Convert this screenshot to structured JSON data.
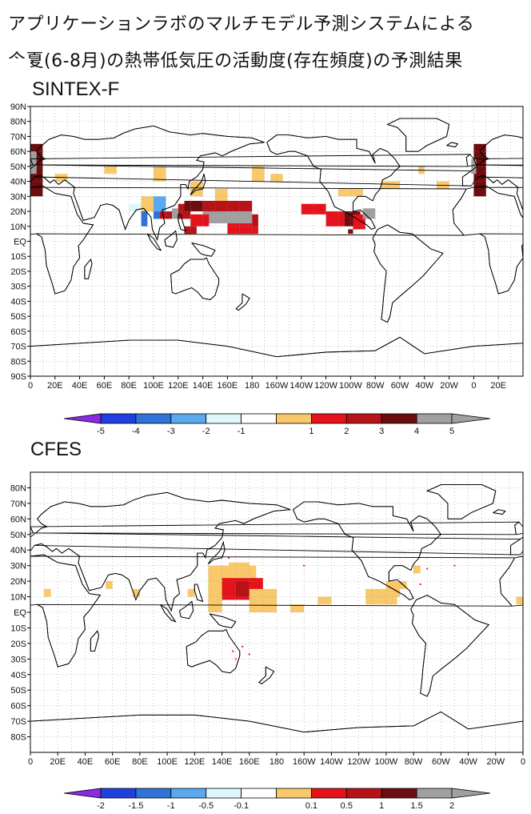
{
  "title": {
    "line1": "アプリケーションラボのマルチモデル予測システムによる",
    "line2": "今夏(6-8月)の熱帯低気圧の活動度(存在頻度)の予測結果"
  },
  "panels": [
    {
      "name": "SINTEX-F",
      "lat_labels": [
        "90N",
        "80N",
        "70N",
        "60N",
        "50N",
        "40N",
        "30N",
        "20N",
        "10N",
        "EQ",
        "10S",
        "20S",
        "30S",
        "40S",
        "50S",
        "60S",
        "70S",
        "80S",
        "90S"
      ],
      "lon_labels": [
        "0",
        "20E",
        "40E",
        "60E",
        "80E",
        "100E",
        "120E",
        "140E",
        "160E",
        "180",
        "160W",
        "140W",
        "120W",
        "100W",
        "80W",
        "60W",
        "40W",
        "20W",
        "0",
        "20E"
      ],
      "colorbar_labels": [
        "-5",
        "-4",
        "-3",
        "-2",
        "-1",
        "1",
        "2",
        "3",
        "4",
        "5"
      ]
    },
    {
      "name": "CFES",
      "lat_labels": [
        "80N",
        "70N",
        "60N",
        "50N",
        "40N",
        "30N",
        "20N",
        "10N",
        "EQ",
        "10S",
        "20S",
        "30S",
        "40S",
        "50S",
        "60S",
        "70S",
        "80S"
      ],
      "lon_labels": [
        "0",
        "20E",
        "40E",
        "60E",
        "80E",
        "100E",
        "120E",
        "140E",
        "160E",
        "180",
        "160W",
        "140W",
        "120W",
        "100W",
        "80W",
        "60W",
        "40W",
        "20W",
        "0"
      ],
      "colorbar_labels": [
        "-2",
        "-1.5",
        "-1",
        "-0.5",
        "-0.1",
        "0.1",
        "0.5",
        "1",
        "1.5",
        "2"
      ]
    }
  ],
  "colors": {
    "scale": [
      "#8a2be2",
      "#1f3fe0",
      "#2f73d6",
      "#5aa8ee",
      "#dff6fb",
      "#ffffff",
      "#f8c86a",
      "#e4121a",
      "#b51318",
      "#6e0d10",
      "#a0a0a0"
    ]
  },
  "chart_data": [
    {
      "type": "heatmap",
      "title": "SINTEX-F",
      "variable": "tropical cyclone activity (occurrence frequency) anomaly, Jun-Aug forecast",
      "levels": [
        -5,
        -4,
        -3,
        -2,
        -1,
        1,
        2,
        3,
        4,
        5
      ],
      "regions": [
        {
          "region": "western North Pacific 10N-25N, 120E-180",
          "range": "3 to >5"
        },
        {
          "region": "South China Sea 10N-20N, 100E-120E",
          "range": "-5 to -2"
        },
        {
          "region": "Bay of Bengal / Arabian Sea 15N-25N",
          "range": "-2 to 2"
        },
        {
          "region": "eastern North Pacific 10N-20N, 130W-90W",
          "range": "3 to >5"
        },
        {
          "region": "North Atlantic 30N-45N",
          "range": "1 to 2"
        },
        {
          "region": "central North Pacific 40N, 170E-180",
          "range": "1 to 2"
        }
      ]
    },
    {
      "type": "heatmap",
      "title": "CFES",
      "variable": "tropical cyclone activity (occurrence frequency) anomaly, Jun-Aug forecast",
      "levels": [
        -2,
        -1.5,
        -1,
        -0.5,
        -0.1,
        0.1,
        0.5,
        1,
        1.5,
        2
      ],
      "regions": [
        {
          "region": "western North Pacific 10N-30N, 125E-170E",
          "range": "0.1 to 1.5"
        },
        {
          "region": "Philippine Sea 10N-20N, 140E-155E",
          "range": "0.5 to 1.5"
        },
        {
          "region": "South China Sea / Bay of Bengal 10N-20N",
          "range": "0.1 to 0.5"
        },
        {
          "region": "eastern North Pacific 10N-20N, 120W-100W",
          "range": "0.1 to 0.5"
        },
        {
          "region": "western Atlantic 20N-35N, 80W-60W",
          "range": "-0.1 to 0.5"
        },
        {
          "region": "eastern Atlantic 15N, 10W / 20E",
          "range": "0.1 to 0.5"
        }
      ]
    }
  ]
}
